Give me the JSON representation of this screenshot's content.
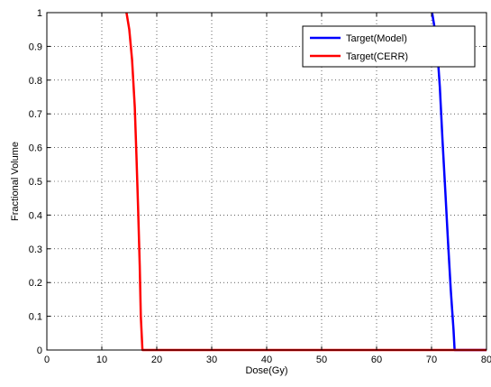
{
  "chart_data": {
    "type": "line",
    "xlabel": "Dose(Gy)",
    "ylabel": "Fractional Volume",
    "xlim": [
      0,
      80
    ],
    "ylim": [
      0,
      1
    ],
    "x_ticks": [
      "0",
      "10",
      "20",
      "30",
      "40",
      "50",
      "60",
      "70",
      "80"
    ],
    "y_ticks": [
      "0",
      "0.1",
      "0.2",
      "0.3",
      "0.4",
      "0.5",
      "0.6",
      "0.7",
      "0.8",
      "0.9",
      "1"
    ],
    "grid": true,
    "legend_position": "top-right",
    "series": [
      {
        "name": "Target(Model)",
        "color": "#0000ff",
        "x": [
          70.1,
          70.5,
          71.0,
          71.5,
          72.0,
          72.5,
          73.0,
          73.5,
          74.0,
          74.2,
          75,
          80
        ],
        "y": [
          1.0,
          0.96,
          0.9,
          0.78,
          0.62,
          0.47,
          0.32,
          0.18,
          0.06,
          0.0,
          0.0,
          0.0
        ]
      },
      {
        "name": "Target(CERR)",
        "color": "#ff0000",
        "x": [
          14.5,
          15.0,
          15.5,
          16.0,
          16.3,
          16.6,
          16.9,
          17.1,
          17.4,
          18,
          30,
          50,
          80
        ],
        "y": [
          1.0,
          0.95,
          0.86,
          0.72,
          0.58,
          0.42,
          0.25,
          0.1,
          0.0,
          0.0,
          0.0,
          0.0,
          0.0
        ]
      }
    ]
  }
}
